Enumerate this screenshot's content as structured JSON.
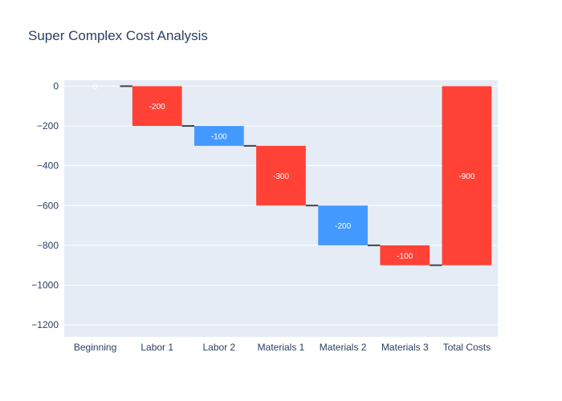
{
  "chart_data": {
    "type": "waterfall",
    "title": "Super Complex Cost Analysis",
    "xlabel": "",
    "ylabel": "",
    "categories": [
      "Beginning",
      "Labor 1",
      "Labor 2",
      "Materials 1",
      "Materials 2",
      "Materials 3",
      "Total Costs"
    ],
    "measures": [
      "relative",
      "relative",
      "relative",
      "relative",
      "relative",
      "relative",
      "total"
    ],
    "values": [
      0,
      -200,
      -100,
      -300,
      -200,
      -100,
      -900
    ],
    "labels": [
      "0",
      "-200",
      "-100",
      "-300",
      "-200",
      "-100",
      "-900"
    ],
    "y_ticks": [
      0,
      -200,
      -400,
      -600,
      -800,
      -1000,
      -1200
    ],
    "y_tick_labels": [
      "0",
      "−200",
      "−400",
      "−600",
      "−800",
      "−1000",
      "−1200"
    ],
    "ylim": [
      -1260,
      30
    ],
    "grid": true,
    "legend": "none",
    "colors": {
      "increasing": "#4499ff",
      "decreasing": "#ff4136",
      "totals": "#ff4136",
      "connector": "#444444",
      "plot_bg": "#e5ecf6",
      "grid": "#ffffff",
      "text": "#2a3f5f"
    }
  }
}
